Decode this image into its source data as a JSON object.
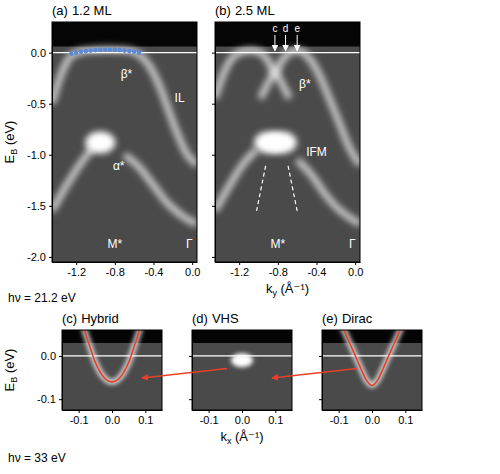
{
  "chart_data": [
    {
      "type": "intensity_map",
      "letter": "(a)",
      "title": "1.2 ML",
      "ylabel": {
        "text": "E",
        "sub": "B",
        "rest": " (eV)"
      },
      "note": "hν = 21.2 eV",
      "xlim": [
        -1.45,
        0.05
      ],
      "ylim": [
        -2.05,
        0.3
      ],
      "xticks": [
        -1.2,
        -0.8,
        -0.4,
        {
          "value": 0,
          "label": "0.0"
        }
      ],
      "yticks": [
        {
          "value": 0,
          "label": "0.0"
        },
        -0.5,
        {
          "value": -1,
          "label": "-1.0"
        },
        -1.5,
        {
          "value": -2,
          "label": "-2.0"
        }
      ],
      "fermi_level": 0,
      "dark_above": 0.06,
      "bands": [
        {
          "k": [
            -1.45,
            -1.35,
            -1.25,
            -1.1,
            -0.95,
            -0.8,
            -0.65,
            -0.55,
            -0.45,
            -0.35,
            -0.25,
            -0.15,
            -0.05,
            0.05
          ],
          "E": [
            -0.5,
            -0.2,
            -0.03,
            0.02,
            0.03,
            0.03,
            0.02,
            -0.02,
            -0.12,
            -0.3,
            -0.55,
            -0.8,
            -1.0,
            -1.1
          ]
        },
        {
          "k": [
            -0.7,
            -0.55,
            -0.4,
            -0.25,
            -0.1,
            0.05
          ],
          "E": [
            -1.0,
            -1.12,
            -1.3,
            -1.48,
            -1.6,
            -1.68
          ]
        },
        {
          "k": [
            -1.45,
            -1.3,
            -1.15,
            -1.02
          ],
          "E": [
            -1.55,
            -1.3,
            -1.08,
            -0.92
          ]
        }
      ],
      "spots": [
        {
          "k": -0.95,
          "E": -0.88
        }
      ],
      "points": {
        "color": "#5a8ad8",
        "marker": "circle",
        "k": [
          -1.25,
          -1.2,
          -1.15,
          -1.1,
          -1.05,
          -1.0,
          -0.95,
          -0.9,
          -0.85,
          -0.8,
          -0.75,
          -0.7,
          -0.65,
          -0.6,
          -0.55
        ],
        "E": [
          -0.01,
          0.0,
          0.01,
          0.015,
          0.02,
          0.025,
          0.027,
          0.028,
          0.028,
          0.027,
          0.025,
          0.02,
          0.015,
          0.01,
          0.0
        ]
      },
      "annotations": [
        {
          "text": "β*",
          "k": -0.68,
          "E": -0.22
        },
        {
          "text": "α*",
          "k": -0.76,
          "E": -1.12
        },
        {
          "text": "M*",
          "k": -0.8,
          "E": -1.88
        },
        {
          "text": "Γ",
          "k": -0.03,
          "E": -1.88
        },
        {
          "text": "IL",
          "k": -0.13,
          "E": -0.45
        }
      ]
    },
    {
      "type": "intensity_map",
      "letter": "(b)",
      "title": "2.5 ML",
      "xlabel": {
        "text": "k",
        "sub": "y",
        "rest": " (Å⁻¹)"
      },
      "tick_labels": "x",
      "xlim": [
        -1.45,
        0.05
      ],
      "ylim": [
        -2.05,
        0.3
      ],
      "xticks": [
        -1.2,
        -0.8,
        -0.4,
        {
          "value": 0,
          "label": "0.0"
        }
      ],
      "yticks": [
        0,
        -0.5,
        -1,
        -1.5,
        -2
      ],
      "fermi_level": 0,
      "dark_above": 0.06,
      "bands": [
        {
          "k": [
            -1.45,
            -1.35,
            -1.25,
            -1.1,
            -0.98,
            -0.9,
            -0.83,
            -0.76,
            -0.68,
            -0.58,
            -0.48,
            -0.38,
            -0.28,
            -0.18,
            -0.05,
            0.05
          ],
          "E": [
            -0.45,
            -0.18,
            -0.03,
            0.02,
            0.0,
            -0.08,
            -0.2,
            -0.08,
            0.0,
            0.02,
            -0.05,
            -0.2,
            -0.42,
            -0.65,
            -0.95,
            -1.1
          ]
        },
        {
          "k": [
            -0.98,
            -0.9,
            -0.83,
            -0.76,
            -0.68
          ],
          "E": [
            -0.45,
            -0.3,
            -0.2,
            -0.3,
            -0.45
          ]
        },
        {
          "k": [
            -0.6,
            -0.45,
            -0.3,
            -0.15,
            0.05
          ],
          "E": [
            -1.05,
            -1.2,
            -1.4,
            -1.55,
            -1.68
          ]
        },
        {
          "k": [
            -1.45,
            -1.3,
            -1.15,
            -1.02
          ],
          "E": [
            -1.55,
            -1.3,
            -1.08,
            -0.95
          ]
        }
      ],
      "spots": [
        {
          "k": -0.89,
          "E": -0.88
        },
        {
          "k": -0.76,
          "E": -0.88
        }
      ],
      "guides": {
        "line_style": "dashed",
        "lines": [
          {
            "k": [
              -1.02,
              -0.92
            ],
            "E": [
              -1.55,
              -1.08
            ]
          },
          {
            "k": [
              -0.6,
              -0.7
            ],
            "E": [
              -1.55,
              -1.08
            ]
          }
        ]
      },
      "markers": [
        {
          "text": "c",
          "k": -0.83
        },
        {
          "text": "d",
          "k": -0.72
        },
        {
          "text": "e",
          "k": -0.6
        }
      ],
      "annotations": [
        {
          "text": "β*",
          "k": -0.52,
          "E": -0.32
        },
        {
          "text": "IFM",
          "k": -0.4,
          "E": -0.98
        },
        {
          "text": "M*",
          "k": -0.8,
          "E": -1.88
        },
        {
          "text": "Γ",
          "k": -0.03,
          "E": -1.88
        }
      ]
    },
    {
      "type": "intensity_map",
      "letter": "(c)",
      "title": "Hybrid",
      "ylabel": {
        "text": "E",
        "sub": "B",
        "rest": " (eV)"
      },
      "note": "hν = 33 eV",
      "xlim": [
        -0.15,
        0.15
      ],
      "ylim": [
        -0.125,
        0.06
      ],
      "xticks": [
        -0.1,
        {
          "value": 0,
          "label": "0.0"
        },
        0.1
      ],
      "yticks": [
        {
          "value": 0,
          "label": "0.0"
        },
        -0.1
      ],
      "fermi_level": 0,
      "dark_above": 0.03,
      "curves": [
        {
          "color": "#e8402a",
          "k": [
            -0.085,
            -0.07,
            -0.05,
            -0.03,
            -0.015,
            0,
            0.015,
            0.03,
            0.05,
            0.07,
            0.085
          ],
          "E": [
            0.065,
            0.03,
            -0.015,
            -0.044,
            -0.056,
            -0.06,
            -0.056,
            -0.044,
            -0.015,
            0.03,
            0.065
          ]
        }
      ]
    },
    {
      "type": "intensity_map",
      "letter": "(d)",
      "title": "VHS",
      "xlabel": {
        "text": "k",
        "sub": "x",
        "rest": " (Å⁻¹)"
      },
      "tick_labels": "x",
      "xlim": [
        -0.15,
        0.15
      ],
      "ylim": [
        -0.125,
        0.06
      ],
      "xticks": [
        -0.1,
        {
          "value": 0,
          "label": "0.0"
        },
        0.1
      ],
      "yticks": [
        0,
        -0.1
      ],
      "fermi_level": 0,
      "dark_above": 0.03,
      "spots": [
        {
          "k": 0,
          "E": -0.01
        }
      ]
    },
    {
      "type": "intensity_map",
      "letter": "(e)",
      "title": "Dirac",
      "tick_labels": "x",
      "xlim": [
        -0.15,
        0.15
      ],
      "ylim": [
        -0.125,
        0.06
      ],
      "xticks": [
        -0.1,
        {
          "value": 0,
          "label": "0.0"
        },
        0.1
      ],
      "yticks": [
        0,
        -0.1
      ],
      "fermi_level": 0,
      "dark_above": 0.03,
      "curves": [
        {
          "color": "#e8402a",
          "k": [
            -0.09,
            -0.07,
            -0.05,
            -0.03,
            -0.015,
            0,
            0.015,
            0.03,
            0.05,
            0.07,
            0.09
          ],
          "E": [
            0.07,
            0.035,
            0.0,
            -0.035,
            -0.058,
            -0.068,
            -0.058,
            -0.035,
            0.0,
            0.035,
            0.07
          ]
        }
      ]
    }
  ]
}
